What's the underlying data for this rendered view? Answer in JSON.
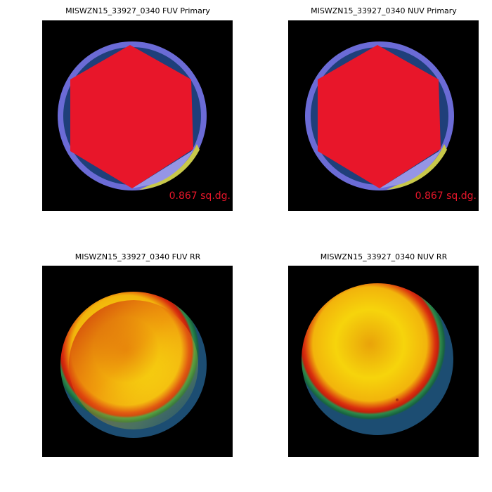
{
  "panels": [
    {
      "title": "MISWZN15_33927_0340 FUV Primary",
      "annotation": "0.867 sq.dg."
    },
    {
      "title": "MISWZN15_33927_0340 NUV Primary",
      "annotation": "0.867 sq.dg."
    },
    {
      "title": "MISWZN15_33927_0340 FUV RR"
    },
    {
      "title": "MISWZN15_33927_0340 NUV RR"
    }
  ]
}
